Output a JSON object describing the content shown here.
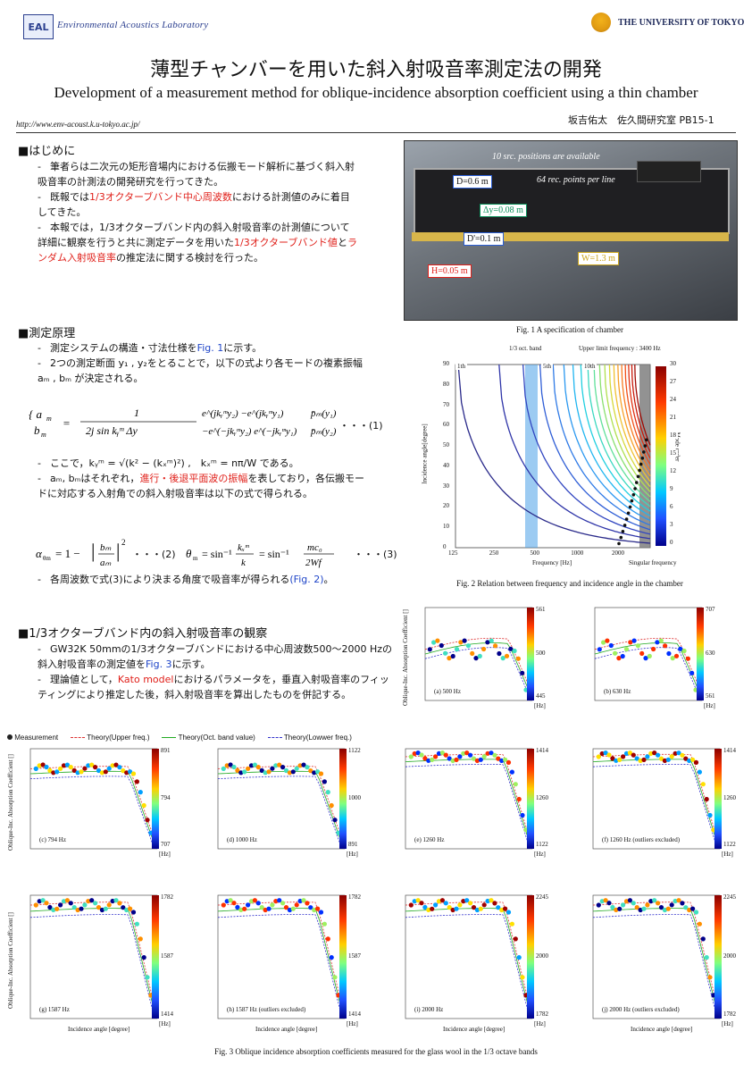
{
  "header": {
    "logo_text": "EAL",
    "lab_name": "Environmental Acoustics Laboratory",
    "university": "THE UNIVERSITY OF TOKYO",
    "title_ja": "薄型チャンバーを用いた斜入射吸音率測定法の開発",
    "title_en": "Development of a measurement method for oblique-incidence absorption coefficient using a thin chamber",
    "url": "http://www.env-acoust.k.u-tokyo.ac.jp/",
    "author": "坂吉佑太　佐久間研究室  PB15-1"
  },
  "sec1": {
    "heading": "■はじめに",
    "b1": "筆者らは二次元の矩形音場内における伝搬モード解析に基づく斜入射吸音率の計測法の開発研究を行ってきた。",
    "b2a": "既報では",
    "b2red": "1/3オクターブバンド中心周波数",
    "b2b": "における計測値のみに着目してきた。",
    "b3a": "本報では，1/3オクターブバンド内の斜入射吸音率の計測値について詳細に観察を行うと共に測定データを用いた",
    "b3red1": "1/3オクターブバンド値",
    "b3mid": "と",
    "b3red2": "ランダム入射吸音率",
    "b3b": "の推定法に関する検討を行った。"
  },
  "sec2": {
    "heading": "■測定原理",
    "b1a": "測定システムの構造・寸法仕様を",
    "b1link": "Fig. 1",
    "b1b": "に示す。",
    "b2": "2つの測定断面 y₁ , y₂をとることで，以下の式より各モードの複素振幅　aₘ , bₘ が決定される。",
    "eq1_num": "・・・(1)",
    "b3": "ここで，kᵧᵐ = √(k² − (kₓᵐ)²) ,　kₓᵐ = nπ/W である。",
    "b4a": "aₘ, bₘはそれぞれ，",
    "b4red": "進行・後退平面波の振幅",
    "b4b": "を表しており，各伝搬モードに対応する入射角での斜入射吸音率は以下の式で得られる。",
    "eq2_num": "・・・(2)",
    "eq3_num": "・・・(3)",
    "b5a": "各周波数で式(3)により決まる角度で吸音率が得られる",
    "b5link": "(Fig. 2)",
    "b5b": "。"
  },
  "sec3": {
    "heading": "■1/3オクターブバンド内の斜入射吸音率の観察",
    "b1a": "GW32K 50mmの1/3オクターブバンドにおける中心周波数500～2000 Hzの斜入射吸音率の測定値を",
    "b1link": "Fig. 3",
    "b1b": "に示す。",
    "b2a": "理論値として，",
    "b2red": "Kato model",
    "b2b": "におけるパラメータを，垂直入射吸音率のフィッティングにより推定した後，斜入射吸音率を算出したものを併記する。"
  },
  "fig1": {
    "caption": "Fig. 1 A specification of chamber",
    "note1": "10 src. positions are available",
    "note2": "64 rec. points per line",
    "D": "D=0.6 m",
    "dy": "Δy=0.08 m",
    "Dp": "D'=0.1 m",
    "W": "W=1.3 m",
    "H": "H=0.05 m"
  },
  "fig2": {
    "caption": "Fig. 2 Relation between frequency and incidence angle in the chamber",
    "ann_band": "1/3 oct. band",
    "ann_upper": "Upper limit frequency : 3400 Hz",
    "ann_sing": "Singular frequency",
    "xlabel": "Frequency [Hz]",
    "ylabel": "Incidence angle[degree]",
    "cbar_label": "Mode order",
    "xticks": [
      "125",
      "250",
      "500",
      "1000",
      "2000"
    ],
    "yticks": [
      "0",
      "10",
      "20",
      "30",
      "40",
      "50",
      "60",
      "70",
      "80",
      "90"
    ],
    "cticks": [
      "30",
      "27",
      "24",
      "21",
      "18",
      "15",
      "12",
      "9",
      "6",
      "3",
      "0"
    ],
    "mode_labels": [
      "1th",
      "5th",
      "10th"
    ]
  },
  "fig3": {
    "caption": "Fig. 3 Oblique incidence absorption coefficients measured for the glass wool in the 1/3 octave bands",
    "legend": [
      "Measurement",
      "Theory(Upper freq.)",
      "Theory(Oct. band value)",
      "Theory(Lowwer freq.)"
    ],
    "xlabel": "Incidence angle [degree]",
    "ylabel": "Oblique-Inc. Absorption Coefficient []",
    "hz": "[Hz]",
    "panels": [
      {
        "label": "(a) 500 Hz",
        "ct": "561",
        "cm": "500",
        "cb": "445"
      },
      {
        "label": "(b) 630 Hz",
        "ct": "707",
        "cm": "630",
        "cb": "561"
      },
      {
        "label": "(c) 794 Hz",
        "ct": "891",
        "cm": "794",
        "cb": "707"
      },
      {
        "label": "(d) 1000 Hz",
        "ct": "1122",
        "cm": "1000",
        "cb": "891"
      },
      {
        "label": "(e) 1260 Hz",
        "ct": "1414",
        "cm": "1260",
        "cb": "1122"
      },
      {
        "label": "(f) 1260 Hz (outliers excluded)",
        "ct": "1414",
        "cm": "1260",
        "cb": "1122"
      },
      {
        "label": "(g) 1587 Hz",
        "ct": "1782",
        "cm": "1587",
        "cb": "1414"
      },
      {
        "label": "(h) 1587 Hz (outliers excluded)",
        "ct": "1782",
        "cm": "1587",
        "cb": "1414"
      },
      {
        "label": "(i) 2000 Hz",
        "ct": "2245",
        "cm": "2000",
        "cb": "1782"
      },
      {
        "label": "(j) 2000 Hz (outliers excluded)",
        "ct": "2245",
        "cm": "2000",
        "cb": "1782"
      }
    ]
  }
}
